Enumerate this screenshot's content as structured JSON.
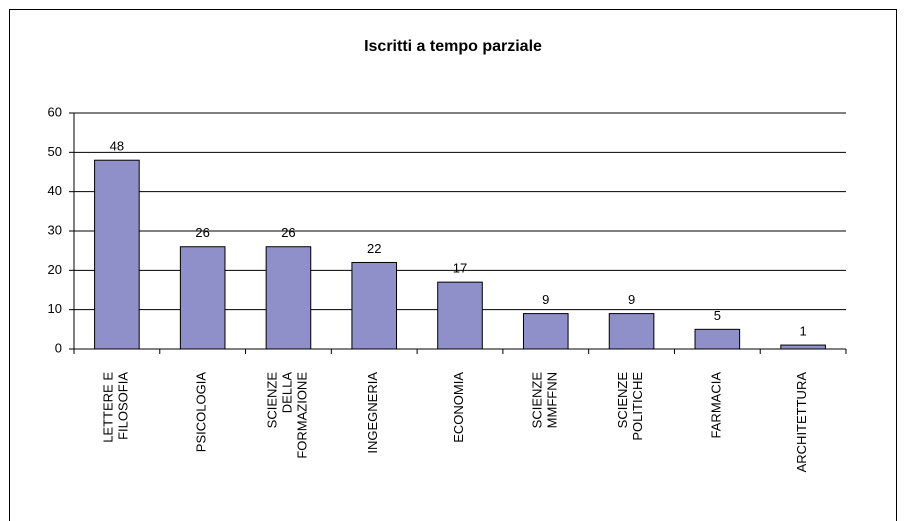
{
  "chart_data": {
    "type": "bar",
    "title": "Iscritti a tempo parziale",
    "categories": [
      "LETTERE E\nFILOSOFIA",
      "PSICOLOGIA",
      "SCIENZE\nDELLA\nFORMAZIONE",
      "INGEGNERIA",
      "ECONOMIA",
      "SCIENZE\nMMFFNN",
      "SCIENZE\nPOLITICHE",
      "FARMACIA",
      "ARCHITETTURA"
    ],
    "values": [
      48,
      26,
      26,
      22,
      17,
      9,
      9,
      5,
      1
    ],
    "color": "#8f8fca",
    "ylim": [
      0,
      60
    ],
    "yticks": [
      0,
      10,
      20,
      30,
      40,
      50,
      60
    ],
    "grid": true
  }
}
